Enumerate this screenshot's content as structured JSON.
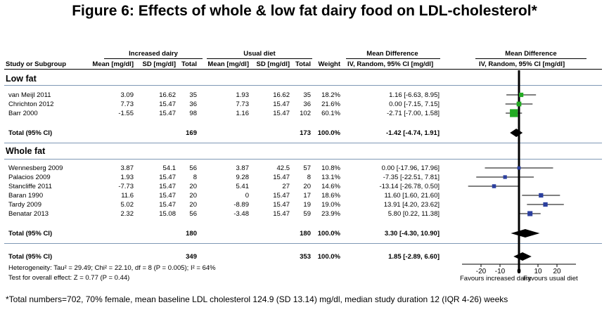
{
  "title": "Figure 6: Effects of whole & low fat dairy food on LDL-cholesterol*",
  "header": {
    "group_increased": "Increased dairy",
    "group_usual": "Usual diet",
    "group_md": "Mean Difference",
    "group_md_right": "Mean Difference",
    "study": "Study or Subgroup",
    "mean1": "Mean [mg/dl]",
    "sd1": "SD [mg/dl]",
    "total1": "Total",
    "mean2": "Mean [mg/dl]",
    "sd2": "SD [mg/dl]",
    "total2": "Total",
    "weight": "Weight",
    "md_method": "IV, Random, 95% CI [mg/dl]",
    "md_method_right": "IV, Random, 95% CI [mg/dl]"
  },
  "subgroups": [
    {
      "name": "Low fat",
      "studies": [
        {
          "study": "van Meijl 2011",
          "mean1": "3.09",
          "sd1": "16.62",
          "n1": "35",
          "mean2": "1.93",
          "sd2": "16.62",
          "n2": "35",
          "weight": "18.2%",
          "ci": "1.16 [-6.63, 8.95]"
        },
        {
          "study": "Chrichton 2012",
          "mean1": "7.73",
          "sd1": "15.47",
          "n1": "36",
          "mean2": "7.73",
          "sd2": "15.47",
          "n2": "36",
          "weight": "21.6%",
          "ci": "0.00 [-7.15, 7.15]"
        },
        {
          "study": "Barr 2000",
          "mean1": "-1.55",
          "sd1": "15.47",
          "n1": "98",
          "mean2": "1.16",
          "sd2": "15.47",
          "n2": "102",
          "weight": "60.1%",
          "ci": "-2.71 [-7.00, 1.58]"
        }
      ],
      "total": {
        "label": "Total (95% CI)",
        "n1": "169",
        "n2": "173",
        "weight": "100.0%",
        "ci": "-1.42 [-4.74, 1.91]"
      }
    },
    {
      "name": "Whole fat",
      "studies": [
        {
          "study": "Wennesberg 2009",
          "mean1": "3.87",
          "sd1": "54.1",
          "n1": "56",
          "mean2": "3.87",
          "sd2": "42.5",
          "n2": "57",
          "weight": "10.8%",
          "ci": "0.00 [-17.96, 17.96]"
        },
        {
          "study": "Palacios 2009",
          "mean1": "1.93",
          "sd1": "15.47",
          "n1": "8",
          "mean2": "9.28",
          "sd2": "15.47",
          "n2": "8",
          "weight": "13.1%",
          "ci": "-7.35 [-22.51, 7.81]"
        },
        {
          "study": "Stancliffe 2011",
          "mean1": "-7.73",
          "sd1": "15.47",
          "n1": "20",
          "mean2": "5.41",
          "sd2": "27",
          "n2": "20",
          "weight": "14.6%",
          "ci": "-13.14 [-26.78, 0.50]"
        },
        {
          "study": "Baran 1990",
          "mean1": "11.6",
          "sd1": "15.47",
          "n1": "20",
          "mean2": "0",
          "sd2": "15.47",
          "n2": "17",
          "weight": "18.6%",
          "ci": "11.60 [1.60, 21.60]"
        },
        {
          "study": "Tardy 2009",
          "mean1": "5.02",
          "sd1": "15.47",
          "n1": "20",
          "mean2": "-8.89",
          "sd2": "15.47",
          "n2": "19",
          "weight": "19.0%",
          "ci": "13.91 [4.20, 23.62]"
        },
        {
          "study": "Benatar 2013",
          "mean1": "2.32",
          "sd1": "15.08",
          "n1": "56",
          "mean2": "-3.48",
          "sd2": "15.47",
          "n2": "59",
          "weight": "23.9%",
          "ci": "5.80 [0.22, 11.38]"
        }
      ],
      "total": {
        "label": "Total (95% CI)",
        "n1": "180",
        "n2": "180",
        "weight": "100.0%",
        "ci": "3.30 [-4.30, 10.90]"
      }
    }
  ],
  "overall": {
    "label": "Total (95% CI)",
    "n1": "349",
    "n2": "353",
    "weight": "100.0%",
    "ci": "1.85 [-2.89, 6.60]"
  },
  "heterogeneity": "Heterogeneity: Tau² = 29.49; Chi² = 22.10, df = 8 (P = 0.005); I² = 64%",
  "overall_effect": "Test for overall effect: Z = 0.77 (P = 0.44)",
  "axis": {
    "ticks": [
      "-20",
      "-10",
      "0",
      "10",
      "20"
    ],
    "left_label": "Favours increased dairy",
    "right_label": "Favours usual diet"
  },
  "footnote": "*Total numbers=702, 70% female, mean baseline LDL cholesterol 124.9 (SD 13.14) mg/dl, median study duration 12 (IQR 4-26) weeks",
  "chart_data": {
    "type": "forest",
    "xlim": [
      -30,
      30
    ],
    "ticks": [
      -20,
      -10,
      0,
      10,
      20
    ],
    "study_points": [
      {
        "study": "van Meijl 2011",
        "md": 1.16,
        "lo": -6.63,
        "hi": 8.95,
        "weight": 18.2,
        "color": "#22aa22"
      },
      {
        "study": "Chrichton 2012",
        "md": 0.0,
        "lo": -7.15,
        "hi": 7.15,
        "weight": 21.6,
        "color": "#22aa22"
      },
      {
        "study": "Barr 2000",
        "md": -2.71,
        "lo": -7.0,
        "hi": 1.58,
        "weight": 60.1,
        "color": "#22aa22"
      },
      {
        "study": "Wennesberg 2009",
        "md": 0.0,
        "lo": -17.96,
        "hi": 17.96,
        "weight": 10.8,
        "color": "#2b3f9e"
      },
      {
        "study": "Palacios 2009",
        "md": -7.35,
        "lo": -22.51,
        "hi": 7.81,
        "weight": 13.1,
        "color": "#2b3f9e"
      },
      {
        "study": "Stancliffe 2011",
        "md": -13.14,
        "lo": -26.78,
        "hi": 0.5,
        "weight": 14.6,
        "color": "#2b3f9e"
      },
      {
        "study": "Baran 1990",
        "md": 11.6,
        "lo": 1.6,
        "hi": 21.6,
        "weight": 18.6,
        "color": "#2b3f9e"
      },
      {
        "study": "Tardy 2009",
        "md": 13.91,
        "lo": 4.2,
        "hi": 23.62,
        "weight": 19.0,
        "color": "#2b3f9e"
      },
      {
        "study": "Benatar 2013",
        "md": 5.8,
        "lo": 0.22,
        "hi": 11.38,
        "weight": 23.9,
        "color": "#2b3f9e"
      }
    ],
    "diamonds": [
      {
        "label": "Low fat total",
        "md": -1.42,
        "lo": -4.74,
        "hi": 1.91
      },
      {
        "label": "Whole fat total",
        "md": 3.3,
        "lo": -4.3,
        "hi": 10.9
      },
      {
        "label": "Overall total",
        "md": 1.85,
        "lo": -2.89,
        "hi": 6.6
      }
    ]
  }
}
